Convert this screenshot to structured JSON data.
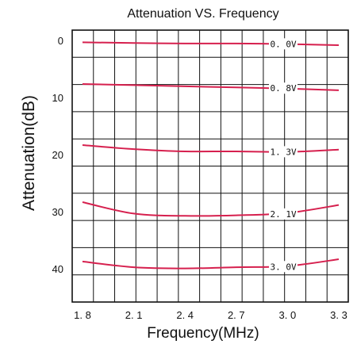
{
  "chart_data": {
    "type": "line",
    "title": "Attenuation VS.  Frequency",
    "xlabel": "Frequency(MHz)",
    "ylabel": "Attenuation(dB)",
    "x_ticks": [
      "1. 8",
      "2. 1",
      "2. 4",
      "2. 7",
      "3. 0",
      "3. 3"
    ],
    "y_ticks": [
      "0",
      "10",
      "20",
      "30",
      "40"
    ],
    "xlim": [
      1.8,
      3.3
    ],
    "ylim": [
      0,
      44
    ],
    "grid": true,
    "line_color": "#d6204e",
    "series": [
      {
        "name": "0. 0V",
        "x": [
          1.8,
          2.1,
          2.4,
          2.7,
          3.0,
          3.3
        ],
        "y": [
          0.2,
          0.3,
          0.4,
          0.4,
          0.5,
          0.7
        ]
      },
      {
        "name": "0. 8V",
        "x": [
          1.8,
          2.1,
          2.4,
          2.7,
          3.0,
          3.3
        ],
        "y": [
          7.5,
          7.7,
          7.9,
          8.1,
          8.3,
          8.6
        ]
      },
      {
        "name": "1. 3V",
        "x": [
          1.8,
          2.1,
          2.4,
          2.7,
          3.0,
          3.3
        ],
        "y": [
          18.2,
          18.9,
          19.3,
          19.3,
          19.4,
          19.0
        ]
      },
      {
        "name": "2. 1V",
        "x": [
          1.8,
          2.1,
          2.4,
          2.7,
          3.0,
          3.3
        ],
        "y": [
          28.2,
          30.2,
          30.6,
          30.5,
          30.1,
          28.7
        ]
      },
      {
        "name": "3. 0V",
        "x": [
          1.8,
          2.1,
          2.4,
          2.7,
          3.0,
          3.3
        ],
        "y": [
          38.6,
          39.6,
          39.8,
          39.6,
          39.4,
          38.2
        ]
      }
    ]
  }
}
